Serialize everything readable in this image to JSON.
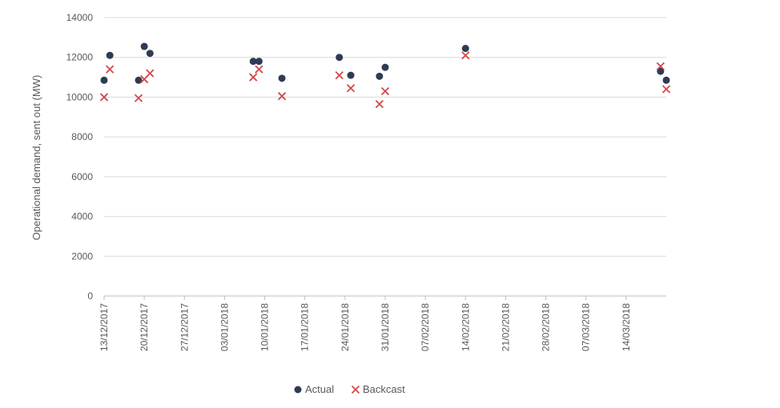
{
  "chart_data": {
    "type": "scatter",
    "ylabel": "Operational demand, sent out (MW)",
    "ylim": [
      0,
      14000
    ],
    "yticks": [
      0,
      2000,
      4000,
      6000,
      8000,
      10000,
      12000,
      14000
    ],
    "xlim": [
      "2017-12-13",
      "2018-03-21"
    ],
    "xticks": [
      "13/12/2017",
      "20/12/2017",
      "27/12/2017",
      "03/01/2018",
      "10/01/2018",
      "17/01/2018",
      "24/01/2018",
      "31/01/2018",
      "07/02/2018",
      "14/02/2018",
      "21/02/2018",
      "28/02/2018",
      "07/03/2018",
      "14/03/2018"
    ],
    "grid": true,
    "legend_position": "bottom",
    "series": [
      {
        "name": "Actual",
        "marker": "circle",
        "color": "#2f3b55",
        "points": [
          {
            "x": "2017-12-13",
            "y": 10850
          },
          {
            "x": "2017-12-14",
            "y": 12100
          },
          {
            "x": "2017-12-19",
            "y": 10850
          },
          {
            "x": "2017-12-20",
            "y": 12550
          },
          {
            "x": "2017-12-21",
            "y": 12200
          },
          {
            "x": "2018-01-08",
            "y": 11800
          },
          {
            "x": "2018-01-09",
            "y": 11800
          },
          {
            "x": "2018-01-13",
            "y": 10950
          },
          {
            "x": "2018-01-23",
            "y": 12000
          },
          {
            "x": "2018-01-25",
            "y": 11100
          },
          {
            "x": "2018-01-30",
            "y": 11050
          },
          {
            "x": "2018-01-31",
            "y": 11500
          },
          {
            "x": "2018-02-14",
            "y": 12450
          },
          {
            "x": "2018-03-20",
            "y": 11300
          },
          {
            "x": "2018-03-21",
            "y": 10850
          }
        ]
      },
      {
        "name": "Backcast",
        "marker": "x",
        "color": "#d04a4a",
        "points": [
          {
            "x": "2017-12-13",
            "y": 10000
          },
          {
            "x": "2017-12-14",
            "y": 11400
          },
          {
            "x": "2017-12-19",
            "y": 9950
          },
          {
            "x": "2017-12-20",
            "y": 10900
          },
          {
            "x": "2017-12-21",
            "y": 11200
          },
          {
            "x": "2018-01-08",
            "y": 11000
          },
          {
            "x": "2018-01-09",
            "y": 11400
          },
          {
            "x": "2018-01-13",
            "y": 10050
          },
          {
            "x": "2018-01-23",
            "y": 11100
          },
          {
            "x": "2018-01-25",
            "y": 10450
          },
          {
            "x": "2018-01-30",
            "y": 9650
          },
          {
            "x": "2018-01-31",
            "y": 10300
          },
          {
            "x": "2018-02-14",
            "y": 12100
          },
          {
            "x": "2018-03-20",
            "y": 11550
          },
          {
            "x": "2018-03-21",
            "y": 10400
          }
        ]
      }
    ]
  }
}
